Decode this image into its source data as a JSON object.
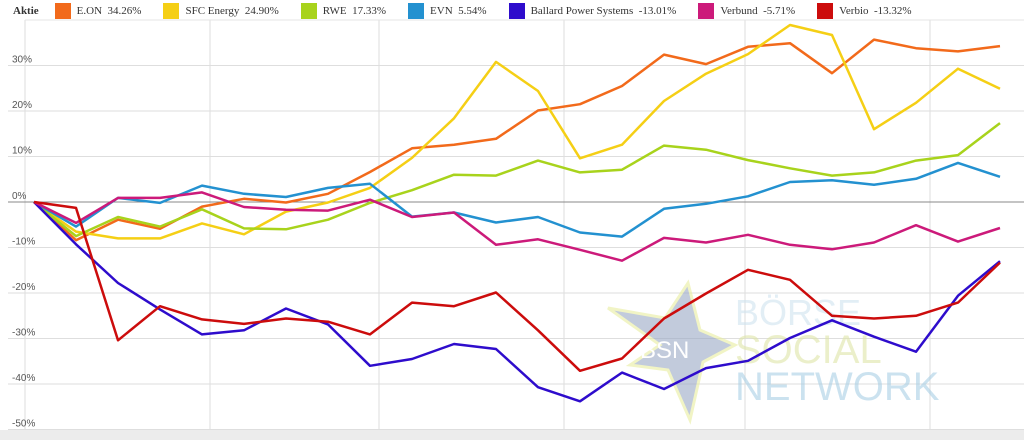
{
  "chart_data": {
    "type": "line",
    "legend_title": "Aktie",
    "legend_placement": "top",
    "ylim": [
      -50,
      40
    ],
    "yticks": [
      30,
      20,
      10,
      0,
      -10,
      -20,
      -30,
      -40,
      -50
    ],
    "ytick_labels": [
      "30%",
      "20%",
      "10%",
      "0%",
      "-10%",
      "-20%",
      "-30%",
      "-40%",
      "-50%"
    ],
    "x": [
      0,
      1,
      2,
      3,
      4,
      5,
      6,
      7,
      8,
      9,
      10,
      11,
      12,
      13,
      14,
      15,
      16,
      17,
      18,
      19,
      20,
      21,
      22,
      23
    ],
    "series": [
      {
        "name": "E.ON",
        "label": "34.26%",
        "color": "#f26a1b",
        "values": [
          0,
          -8.4,
          -3.9,
          -5.9,
          -1.0,
          0.7,
          -0.1,
          1.8,
          6.6,
          11.8,
          12.6,
          13.9,
          20.1,
          21.5,
          25.5,
          32.4,
          30.3,
          34.1,
          34.9,
          28.3,
          35.7,
          33.8,
          33.1,
          34.26
        ]
      },
      {
        "name": "SFC Energy",
        "label": "24.90%",
        "color": "#f5cf15",
        "values": [
          0,
          -6.5,
          -8.0,
          -8.0,
          -4.7,
          -7.1,
          -2.1,
          -0.1,
          3.1,
          9.7,
          18.4,
          30.8,
          24.4,
          9.6,
          12.6,
          22.2,
          28.2,
          32.5,
          38.9,
          36.7,
          16.0,
          21.8,
          29.3,
          24.9
        ]
      },
      {
        "name": "RWE",
        "label": "17.33%",
        "color": "#a8d31c",
        "values": [
          0,
          -7.5,
          -3.3,
          -5.4,
          -1.6,
          -5.8,
          -6.0,
          -3.9,
          -0.2,
          2.6,
          6.0,
          5.8,
          9.1,
          6.5,
          7.1,
          12.4,
          11.5,
          9.2,
          7.4,
          5.8,
          6.5,
          9.1,
          10.3,
          17.33
        ]
      },
      {
        "name": "EVN",
        "label": "5.54%",
        "color": "#2391d0",
        "values": [
          0,
          -5.4,
          0.9,
          -0.2,
          3.6,
          1.8,
          1.1,
          3.1,
          4.0,
          -3.2,
          -2.3,
          -4.5,
          -3.3,
          -6.7,
          -7.6,
          -1.5,
          -0.4,
          1.25,
          4.4,
          4.8,
          3.8,
          5.1,
          8.6,
          5.54
        ]
      },
      {
        "name": "Ballard Power Systems",
        "label": "-13.01%",
        "color": "#2e0ccc",
        "values": [
          0,
          -9.3,
          -17.8,
          -23.6,
          -29.1,
          -28.2,
          -23.4,
          -26.9,
          -36.0,
          -34.5,
          -31.2,
          -32.3,
          -40.7,
          -43.8,
          -37.5,
          -41.1,
          -36.5,
          -34.9,
          -29.9,
          -26.0,
          -29.6,
          -32.9,
          -20.6,
          -13.01
        ]
      },
      {
        "name": "Verbund",
        "label": "-5.71%",
        "color": "#cc1a7a",
        "values": [
          0,
          -4.6,
          0.9,
          0.9,
          2.1,
          -1.1,
          -1.7,
          -1.9,
          0.5,
          -3.3,
          -2.3,
          -9.4,
          -8.2,
          -10.5,
          -12.9,
          -7.9,
          -8.9,
          -7.2,
          -9.4,
          -10.4,
          -8.9,
          -5.1,
          -8.7,
          -5.71
        ]
      },
      {
        "name": "Verbio",
        "label": "-13.32%",
        "color": "#cc0c0c",
        "values": [
          0,
          -1.3,
          -30.4,
          -22.9,
          -25.8,
          -26.8,
          -25.6,
          -26.3,
          -29.1,
          -22.1,
          -22.9,
          -19.9,
          -28.2,
          -37.1,
          -34.4,
          -25.6,
          -20.1,
          -14.9,
          -17.1,
          -25.0,
          -25.6,
          -25.0,
          -22.1,
          -13.32
        ]
      }
    ]
  },
  "watermark": {
    "logo": "BSN",
    "lines": [
      "BÖRSE",
      "SOCIAL",
      "NETWORK"
    ]
  }
}
